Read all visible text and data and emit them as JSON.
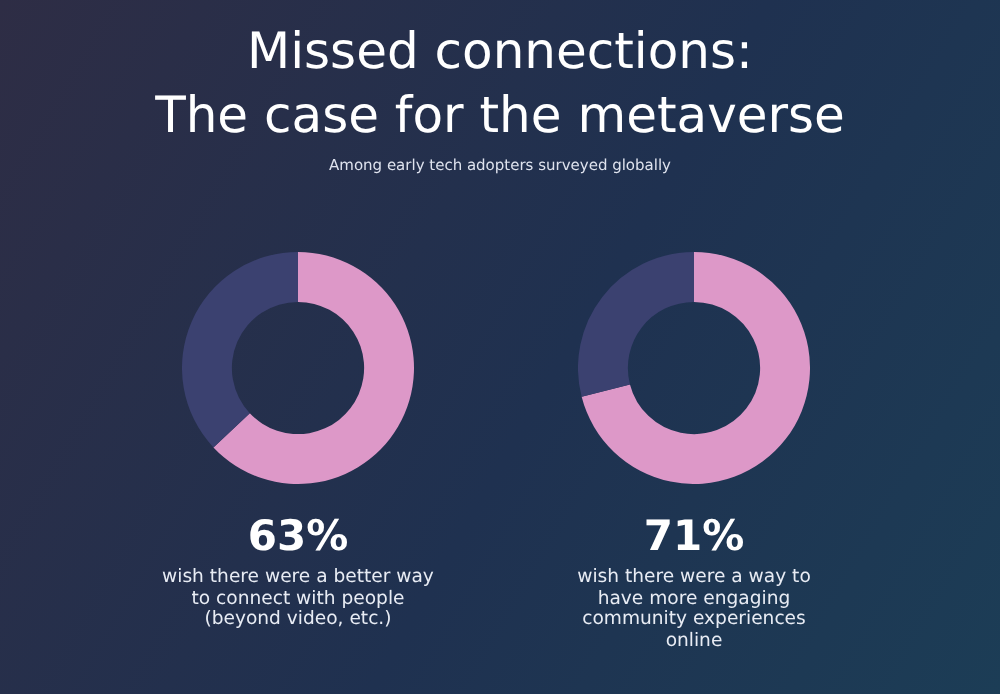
{
  "chart_data": [
    {
      "type": "donut",
      "title": "Missed connections:\nThe case for the metaverse",
      "subtitle": "Among early tech adopters surveyed globally",
      "categories": [
        null,
        null
      ],
      "values": [
        63,
        37
      ],
      "colors": [
        "#dd98c8",
        "#3b4170"
      ],
      "value_labels": [
        "63%",
        null
      ],
      "annotations": [
        "wish there were a better way to connect with people (beyond video, etc.)"
      ]
    },
    {
      "type": "donut",
      "categories": [
        null,
        null
      ],
      "values": [
        71,
        29
      ],
      "colors": [
        "#dd98c8",
        "#3b4170"
      ],
      "value_labels": [
        "71%",
        null
      ],
      "annotations": [
        "wish there were a way to have more engaging community experiences online"
      ]
    }
  ]
}
